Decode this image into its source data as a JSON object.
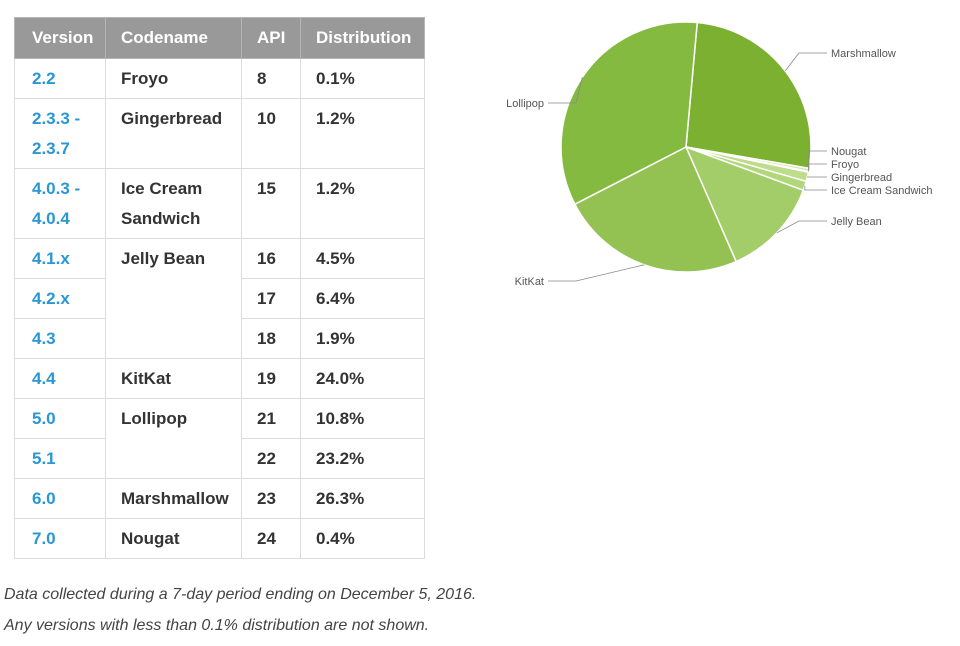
{
  "table": {
    "headers": [
      "Version",
      "Codename",
      "API",
      "Distribution"
    ],
    "rows": [
      {
        "version": "2.2",
        "codename": "Froyo",
        "api": "8",
        "dist": "0.1%"
      },
      {
        "version": "2.3.3 - 2.3.7",
        "codename": "Gingerbread",
        "api": "10",
        "dist": "1.2%"
      },
      {
        "version": "4.0.3 - 4.0.4",
        "codename": "Ice Cream Sandwich",
        "api": "15",
        "dist": "1.2%"
      },
      {
        "version": "4.1.x",
        "codename": "Jelly Bean",
        "api": "16",
        "dist": "4.5%"
      },
      {
        "version": "4.2.x",
        "codename": "",
        "api": "17",
        "dist": "6.4%"
      },
      {
        "version": "4.3",
        "codename": "",
        "api": "18",
        "dist": "1.9%"
      },
      {
        "version": "4.4",
        "codename": "KitKat",
        "api": "19",
        "dist": "24.0%"
      },
      {
        "version": "5.0",
        "codename": "Lollipop",
        "api": "21",
        "dist": "10.8%"
      },
      {
        "version": "5.1",
        "codename": "",
        "api": "22",
        "dist": "23.2%"
      },
      {
        "version": "6.0",
        "codename": "Marshmallow",
        "api": "23",
        "dist": "26.3%"
      },
      {
        "version": "7.0",
        "codename": "Nougat",
        "api": "24",
        "dist": "0.4%"
      }
    ]
  },
  "notes": {
    "line1": "Data collected during a 7-day period ending on December 5, 2016.",
    "line2": "Any versions with less than 0.1% distribution are not shown."
  },
  "chart_data": {
    "type": "pie",
    "title": "",
    "slices": [
      {
        "label": "Marshmallow",
        "value": 26.3,
        "color": "#7cb030"
      },
      {
        "label": "Nougat",
        "value": 0.4,
        "color": "#d3e8b3"
      },
      {
        "label": "Froyo",
        "value": 0.1,
        "color": "#c8e2a0"
      },
      {
        "label": "Gingerbread",
        "value": 1.2,
        "color": "#bddc8c"
      },
      {
        "label": "Ice Cream Sandwich",
        "value": 1.2,
        "color": "#b2d67a"
      },
      {
        "label": "Jelly Bean",
        "value": 12.8,
        "color": "#a3cd68"
      },
      {
        "label": "KitKat",
        "value": 24.0,
        "color": "#93c253"
      },
      {
        "label": "Lollipop",
        "value": 34.0,
        "color": "#85ba41"
      }
    ],
    "legend": "none"
  }
}
